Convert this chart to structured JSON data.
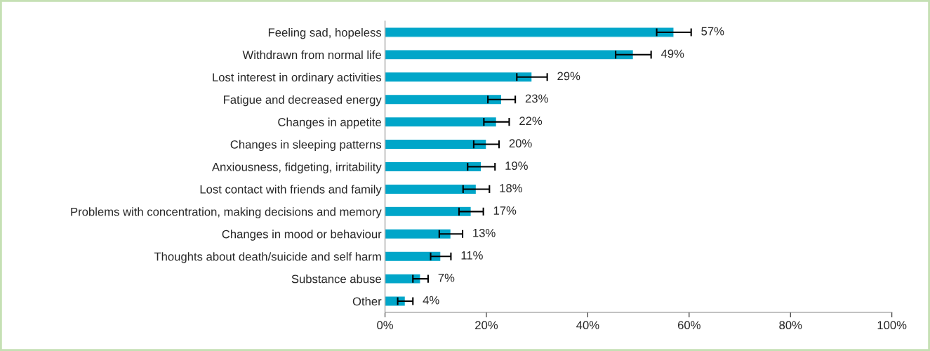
{
  "chart_data": {
    "type": "bar",
    "orientation": "horizontal",
    "categories": [
      "Feeling sad, hopeless",
      "Withdrawn from normal life",
      "Lost interest in ordinary activities",
      "Fatigue and decreased energy",
      "Changes in appetite",
      "Changes in sleeping patterns",
      "Anxiousness, fidgeting, irritability",
      "Lost contact with friends and family",
      "Problems with concentration, making decisions and memory",
      "Changes in mood or behaviour",
      "Thoughts about death/suicide and self harm",
      "Substance abuse",
      "Other"
    ],
    "values": [
      57,
      49,
      29,
      23,
      22,
      20,
      19,
      18,
      17,
      13,
      11,
      7,
      4
    ],
    "errors": [
      3.4,
      3.5,
      3,
      2.7,
      2.5,
      2.5,
      2.7,
      2.6,
      2.4,
      2.3,
      2,
      1.5,
      1.5
    ],
    "color": "#00a6c9",
    "xlim": [
      0,
      100
    ],
    "xticks": [
      {
        "value": 0,
        "label": "0%"
      },
      {
        "value": 20,
        "label": "20%"
      },
      {
        "value": 40,
        "label": "40%"
      },
      {
        "value": 60,
        "label": "60%"
      },
      {
        "value": 80,
        "label": "80%"
      },
      {
        "value": 100,
        "label": "100%"
      }
    ],
    "value_labels": [
      "57%",
      "49%",
      "29%",
      "23%",
      "22%",
      "20%",
      "19%",
      "18%",
      "17%",
      "13%",
      "11%",
      "7%",
      "4%"
    ],
    "grid": false,
    "legend": false
  }
}
